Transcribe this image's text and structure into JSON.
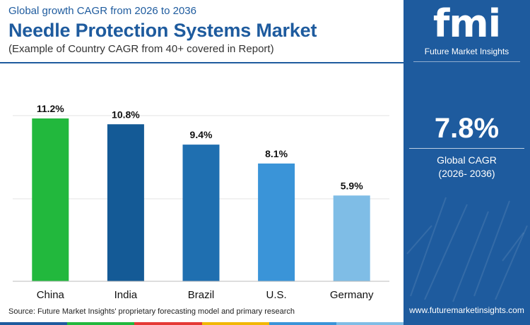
{
  "header": {
    "supertitle": "Global growth CAGR from 2026 to 2036",
    "title": "Needle Protection Systems Market",
    "subtitle": "(Example of Country CAGR from 40+ covered in Report)"
  },
  "chart_data": {
    "type": "bar",
    "categories": [
      "China",
      "India",
      "Brazil",
      "U.S.",
      "Germany"
    ],
    "values": [
      11.2,
      10.8,
      9.4,
      8.1,
      5.9
    ],
    "data_labels": [
      "11.2%",
      "10.8%",
      "9.4%",
      "8.1%",
      "5.9%"
    ],
    "bar_colors": [
      "#22b83d",
      "#145a96",
      "#1f6fb0",
      "#3a94d8",
      "#7fbde6"
    ],
    "ylim": [
      0,
      13.5
    ],
    "grid": true,
    "title": "",
    "xlabel": "",
    "ylabel": ""
  },
  "source": "Source: Future Market Insights' proprietary forecasting model and primary research",
  "panel": {
    "logo_text": "fmi",
    "logo_subtitle": "Future Market Insights",
    "cagr_value": "7.8%",
    "cagr_label": "Global CAGR",
    "cagr_period": "(2026- 2036)",
    "website": "www.futuremarketinsights.com"
  },
  "colors": {
    "brand": "#1e5b9e",
    "footer": [
      "#1e5b9e",
      "#22b83d",
      "#e53935",
      "#f2b705",
      "#3a94d8",
      "#7fbde6"
    ]
  }
}
